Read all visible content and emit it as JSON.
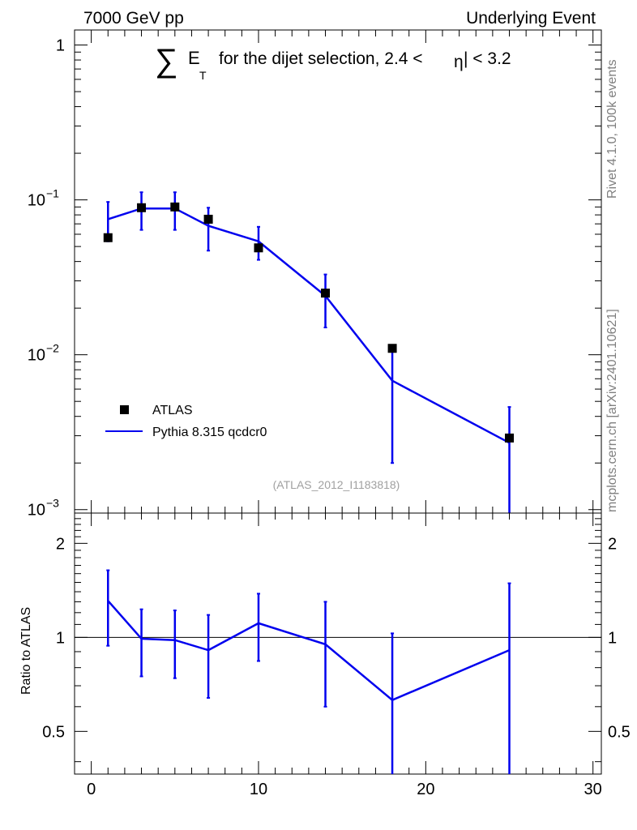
{
  "header": {
    "left": "7000 GeV pp",
    "right": "Underlying Event"
  },
  "side_labels": {
    "top": "Rivet 4.1.0,  100k events",
    "bottom": "mcplots.cern.ch [arXiv:2401.10621]"
  },
  "analysis_ref": "(ATLAS_2012_I1183818)",
  "colors": {
    "data": "#000000",
    "mc": "#0000ee",
    "axis": "#000000"
  },
  "chart_data": [
    {
      "type": "scatter",
      "panel": "main",
      "title": {
        "sum_symbol": "∑",
        "e": "E",
        "sub": "T",
        "rest": "for the dijet selection, 2.4 <",
        "eta": "η",
        "end": "| < 3.2"
      },
      "yscale": "log",
      "ylim": [
        0.00095,
        1.25
      ],
      "xlim": [
        -1,
        30.5
      ],
      "y_ticks": [
        {
          "value": 1,
          "base": "1",
          "exp": ""
        },
        {
          "value": 0.1,
          "base": "10",
          "exp": "−1"
        },
        {
          "value": 0.01,
          "base": "10",
          "exp": "−2"
        },
        {
          "value": 0.001,
          "base": "10",
          "exp": "−3"
        }
      ],
      "legend": {
        "position": "lower-left",
        "entries": [
          {
            "label": "ATLAS",
            "style": "marker"
          },
          {
            "label": "Pythia 8.315 qcdcr0",
            "style": "line"
          }
        ]
      },
      "series": [
        {
          "name": "ATLAS",
          "style": "marker",
          "x": [
            1,
            3,
            5,
            7,
            10,
            14,
            18,
            25
          ],
          "y": [
            0.057,
            0.089,
            0.09,
            0.075,
            0.049,
            0.025,
            0.011,
            0.0029
          ]
        },
        {
          "name": "Pythia 8.315 qcdcr0",
          "style": "line",
          "x": [
            1,
            3,
            5,
            7,
            10,
            14,
            18,
            25
          ],
          "y": [
            0.075,
            0.088,
            0.088,
            0.068,
            0.054,
            0.024,
            0.0068,
            0.0027
          ],
          "err_low": [
            0.054,
            0.064,
            0.064,
            0.047,
            0.041,
            0.015,
            0.002,
            0.0009
          ],
          "err_high": [
            0.097,
            0.112,
            0.112,
            0.089,
            0.067,
            0.033,
            0.0115,
            0.0046
          ]
        }
      ]
    },
    {
      "type": "line",
      "panel": "ratio",
      "ylabel": "Ratio to ATLAS",
      "yscale": "log",
      "ylim": [
        0.365,
        2.5
      ],
      "xlim": [
        -1,
        30.5
      ],
      "y_tick_labels": [
        {
          "value": 2,
          "label": "2"
        },
        {
          "value": 1,
          "label": "1"
        },
        {
          "value": 0.5,
          "label": "0.5"
        }
      ],
      "x_tick_labels": [
        {
          "value": 0,
          "label": "0"
        },
        {
          "value": 10,
          "label": "10"
        },
        {
          "value": 20,
          "label": "20"
        },
        {
          "value": 30,
          "label": "30"
        }
      ],
      "reference_line": 1,
      "series": [
        {
          "name": "Pythia 8.315 qcdcr0",
          "x": [
            1,
            3,
            5,
            7,
            10,
            14,
            18,
            25
          ],
          "y": [
            1.31,
            0.99,
            0.98,
            0.91,
            1.11,
            0.95,
            0.63,
            0.91
          ],
          "err_low": [
            0.94,
            0.75,
            0.74,
            0.64,
            0.84,
            0.6,
            0.36,
            0.36
          ],
          "err_high": [
            1.64,
            1.23,
            1.22,
            1.18,
            1.38,
            1.3,
            1.03,
            1.49
          ]
        }
      ]
    }
  ]
}
